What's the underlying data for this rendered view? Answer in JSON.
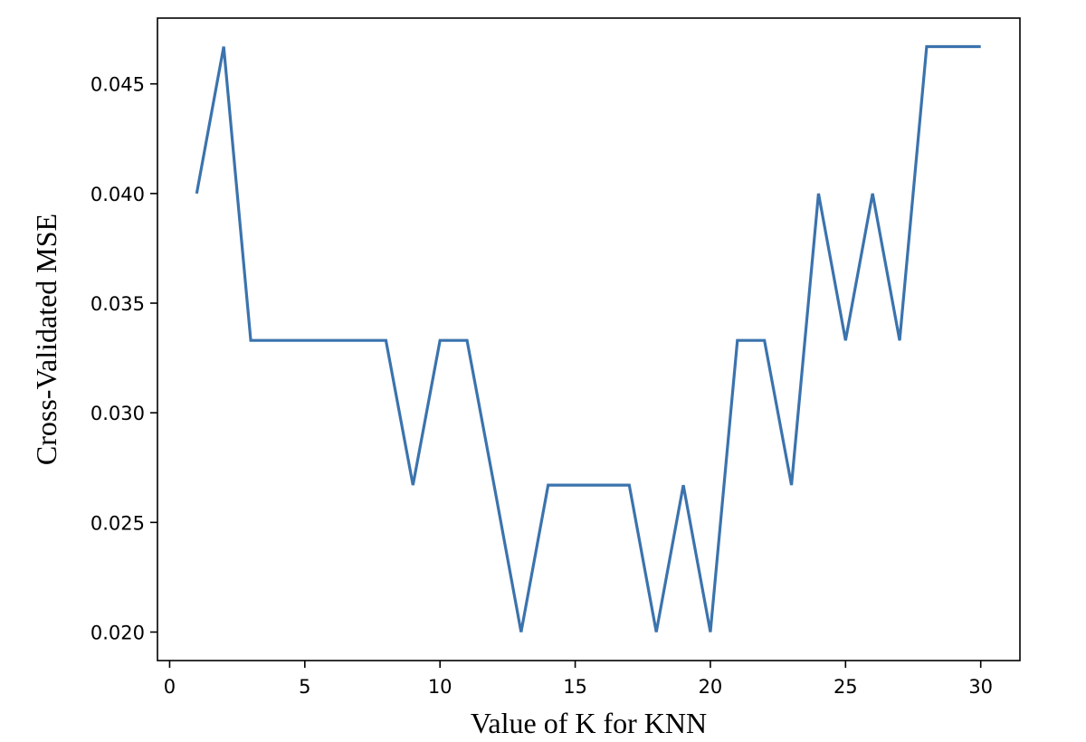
{
  "chart_data": {
    "type": "line",
    "title": "",
    "xlabel": "Value of K for KNN",
    "ylabel": "Cross-Validated MSE",
    "xlim": [
      -0.45,
      31.45
    ],
    "ylim": [
      0.0187,
      0.048
    ],
    "xticks": [
      0,
      5,
      10,
      15,
      20,
      25,
      30
    ],
    "xtick_labels": [
      "0",
      "5",
      "10",
      "15",
      "20",
      "25",
      "30"
    ],
    "yticks": [
      0.02,
      0.025,
      0.03,
      0.035,
      0.04,
      0.045
    ],
    "ytick_labels": [
      "0.020",
      "0.025",
      "0.030",
      "0.035",
      "0.040",
      "0.045"
    ],
    "grid": false,
    "series": [
      {
        "color": "#3b73ad",
        "x": [
          1,
          2,
          3,
          4,
          5,
          6,
          7,
          8,
          9,
          10,
          11,
          12,
          13,
          14,
          15,
          16,
          17,
          18,
          19,
          20,
          21,
          22,
          23,
          24,
          25,
          26,
          27,
          28,
          29,
          30
        ],
        "y": [
          0.04,
          0.0467,
          0.0333,
          0.0333,
          0.0333,
          0.0333,
          0.0333,
          0.0333,
          0.0267,
          0.0333,
          0.0333,
          0.0267,
          0.02,
          0.0267,
          0.0267,
          0.0267,
          0.0267,
          0.02,
          0.0267,
          0.02,
          0.0333,
          0.0333,
          0.0267,
          0.04,
          0.0333,
          0.04,
          0.0333,
          0.0467,
          0.0467,
          0.0467
        ]
      }
    ]
  }
}
